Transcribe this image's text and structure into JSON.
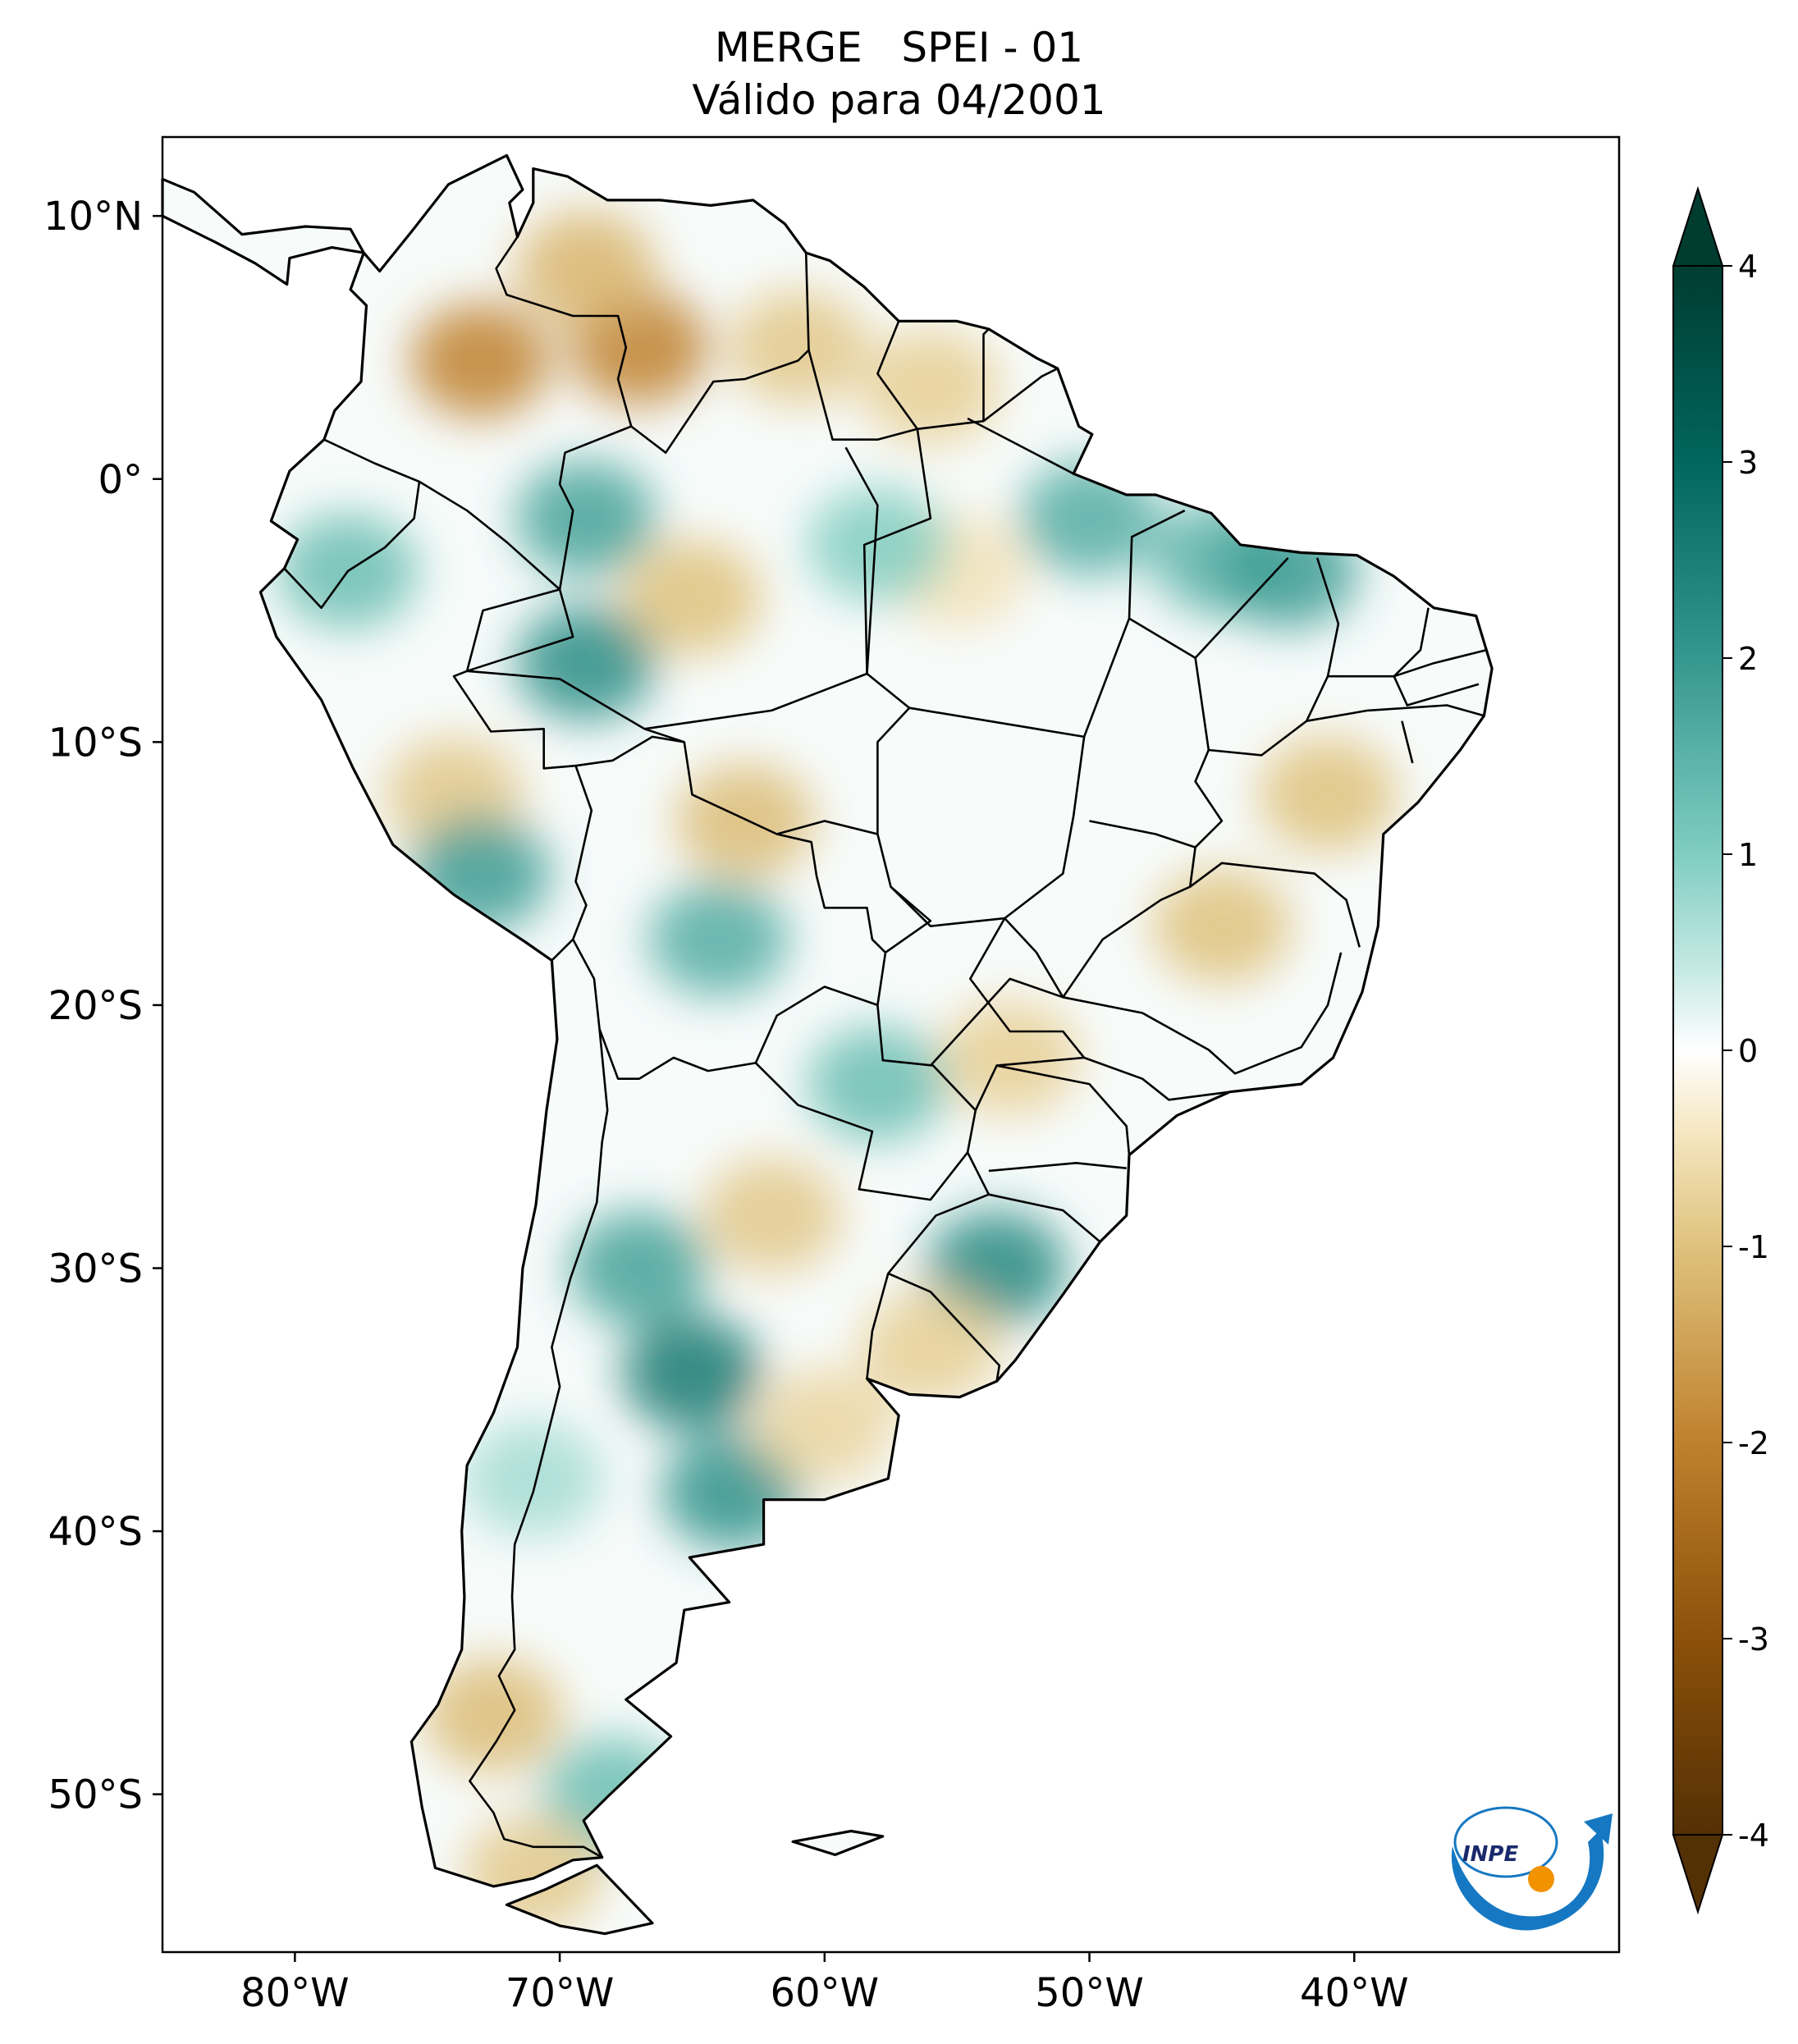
{
  "title": {
    "line1": "MERGE   SPEI - 01",
    "line2": "Válido para 04/2001"
  },
  "map": {
    "extent": {
      "lon_min": -85,
      "lon_max": -30,
      "lat_min": -56,
      "lat_max": 13
    },
    "lon_ticks": [
      {
        "value": -80,
        "label": "80°W"
      },
      {
        "value": -70,
        "label": "70°W"
      },
      {
        "value": -60,
        "label": "60°W"
      },
      {
        "value": -50,
        "label": "50°W"
      },
      {
        "value": -40,
        "label": "40°W"
      }
    ],
    "lat_ticks": [
      {
        "value": 10,
        "label": "10°N"
      },
      {
        "value": 0,
        "label": "0°"
      },
      {
        "value": -10,
        "label": "10°S"
      },
      {
        "value": -20,
        "label": "20°S"
      },
      {
        "value": -30,
        "label": "30°S"
      },
      {
        "value": -40,
        "label": "40°S"
      },
      {
        "value": -50,
        "label": "50°S"
      }
    ],
    "regions": [
      {
        "lon": -73,
        "lat": 4.5,
        "spei": -2.0
      },
      {
        "lon": -67,
        "lat": 5.0,
        "spei": -2.0
      },
      {
        "lon": -69,
        "lat": 8.0,
        "spei": -1.2
      },
      {
        "lon": -61,
        "lat": 5.0,
        "spei": -0.9
      },
      {
        "lon": -56,
        "lat": 3.5,
        "spei": -0.8
      },
      {
        "lon": -65,
        "lat": -4.5,
        "spei": -1.0
      },
      {
        "lon": -55,
        "lat": -3.5,
        "spei": -0.5
      },
      {
        "lon": -69,
        "lat": -1.5,
        "spei": 1.8
      },
      {
        "lon": -69,
        "lat": -7.0,
        "spei": 2.2
      },
      {
        "lon": -58,
        "lat": -2.5,
        "spei": 1.0
      },
      {
        "lon": -50,
        "lat": -1.5,
        "spei": 1.6
      },
      {
        "lon": -45,
        "lat": -3.0,
        "spei": 1.5
      },
      {
        "lon": -42.5,
        "lat": -3.5,
        "spei": 1.9
      },
      {
        "lon": -78,
        "lat": -3.5,
        "spei": 1.3
      },
      {
        "lon": -63,
        "lat": -13.0,
        "spei": -1.1
      },
      {
        "lon": -74,
        "lat": -12.0,
        "spei": -0.9
      },
      {
        "lon": -73,
        "lat": -15.0,
        "spei": 1.9
      },
      {
        "lon": -64,
        "lat": -17.5,
        "spei": 1.6
      },
      {
        "lon": -45,
        "lat": -17.0,
        "spei": -1.0
      },
      {
        "lon": -41,
        "lat": -12.0,
        "spei": -1.0
      },
      {
        "lon": -53,
        "lat": -22.0,
        "spei": -0.8
      },
      {
        "lon": -58,
        "lat": -23.0,
        "spei": 1.3
      },
      {
        "lon": -53.5,
        "lat": -30.0,
        "spei": 2.3
      },
      {
        "lon": -56,
        "lat": -33.0,
        "spei": -0.8
      },
      {
        "lon": -67,
        "lat": -30.0,
        "spei": 1.8
      },
      {
        "lon": -65,
        "lat": -34.0,
        "spei": 2.6
      },
      {
        "lon": -63.5,
        "lat": -38.5,
        "spei": 2.1
      },
      {
        "lon": -62,
        "lat": -28.0,
        "spei": -0.9
      },
      {
        "lon": -60,
        "lat": -36.0,
        "spei": -0.7
      },
      {
        "lon": -72.5,
        "lat": -47.0,
        "spei": -1.1
      },
      {
        "lon": -68,
        "lat": -50.0,
        "spei": 1.3
      },
      {
        "lon": -71,
        "lat": -53.0,
        "spei": -0.9
      },
      {
        "lon": -71,
        "lat": -38.0,
        "spei": 0.7
      }
    ]
  },
  "colorbar": {
    "min": -4,
    "max": 4,
    "extend": "both",
    "ticks": [
      {
        "value": 4,
        "label": "4"
      },
      {
        "value": 3,
        "label": "3"
      },
      {
        "value": 2,
        "label": "2"
      },
      {
        "value": 1,
        "label": "1"
      },
      {
        "value": 0,
        "label": "0"
      },
      {
        "value": -1,
        "label": "-1"
      },
      {
        "value": -2,
        "label": "-2"
      },
      {
        "value": -3,
        "label": "-3"
      },
      {
        "value": -4,
        "label": "-4"
      }
    ],
    "colors": {
      "neg4": "#543005",
      "neg3": "#8c510a",
      "neg2": "#bf812d",
      "neg1": "#dfc27d",
      "neg05": "#f6e8c3",
      "zero": "#ffffff",
      "pos05": "#c7eae5",
      "pos1": "#80cdc1",
      "pos2": "#35978f",
      "pos3": "#01665e",
      "pos4": "#003c30"
    }
  },
  "logo": {
    "text": "INPE",
    "colors": {
      "blue": "#1678c2",
      "orange": "#f29200"
    }
  }
}
